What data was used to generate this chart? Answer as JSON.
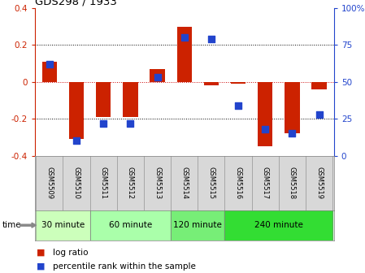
{
  "title": "GDS298 / 1933",
  "samples": [
    "GSM5509",
    "GSM5510",
    "GSM5511",
    "GSM5512",
    "GSM5513",
    "GSM5514",
    "GSM5515",
    "GSM5516",
    "GSM5517",
    "GSM5518",
    "GSM5519"
  ],
  "log_ratio": [
    0.11,
    -0.31,
    -0.19,
    -0.19,
    0.07,
    0.3,
    -0.02,
    -0.01,
    -0.35,
    -0.28,
    -0.04
  ],
  "percentile": [
    62,
    10,
    22,
    22,
    53,
    80,
    79,
    34,
    18,
    15,
    28
  ],
  "bar_color": "#cc2200",
  "dot_color": "#2244cc",
  "ylim": [
    -0.4,
    0.4
  ],
  "yticks_left": [
    -0.4,
    -0.2,
    0.0,
    0.2,
    0.4
  ],
  "yticks_right": [
    0,
    25,
    50,
    75,
    100
  ],
  "hlines": [
    0.2,
    0.0,
    -0.2
  ],
  "hline_colors": [
    "black",
    "#cc0000",
    "black"
  ],
  "hline_styles": [
    "dotted",
    "dotted",
    "dotted"
  ],
  "groups": [
    {
      "label": "30 minute",
      "start": 0,
      "end": 1,
      "color": "#ccffbb"
    },
    {
      "label": "60 minute",
      "start": 2,
      "end": 4,
      "color": "#aaffaa"
    },
    {
      "label": "120 minute",
      "start": 5,
      "end": 6,
      "color": "#77ee77"
    },
    {
      "label": "240 minute",
      "start": 7,
      "end": 10,
      "color": "#33dd33"
    }
  ],
  "time_label": "time",
  "legend_bar_label": "log ratio",
  "legend_dot_label": "percentile rank within the sample",
  "bar_width": 0.55,
  "dot_size": 28
}
